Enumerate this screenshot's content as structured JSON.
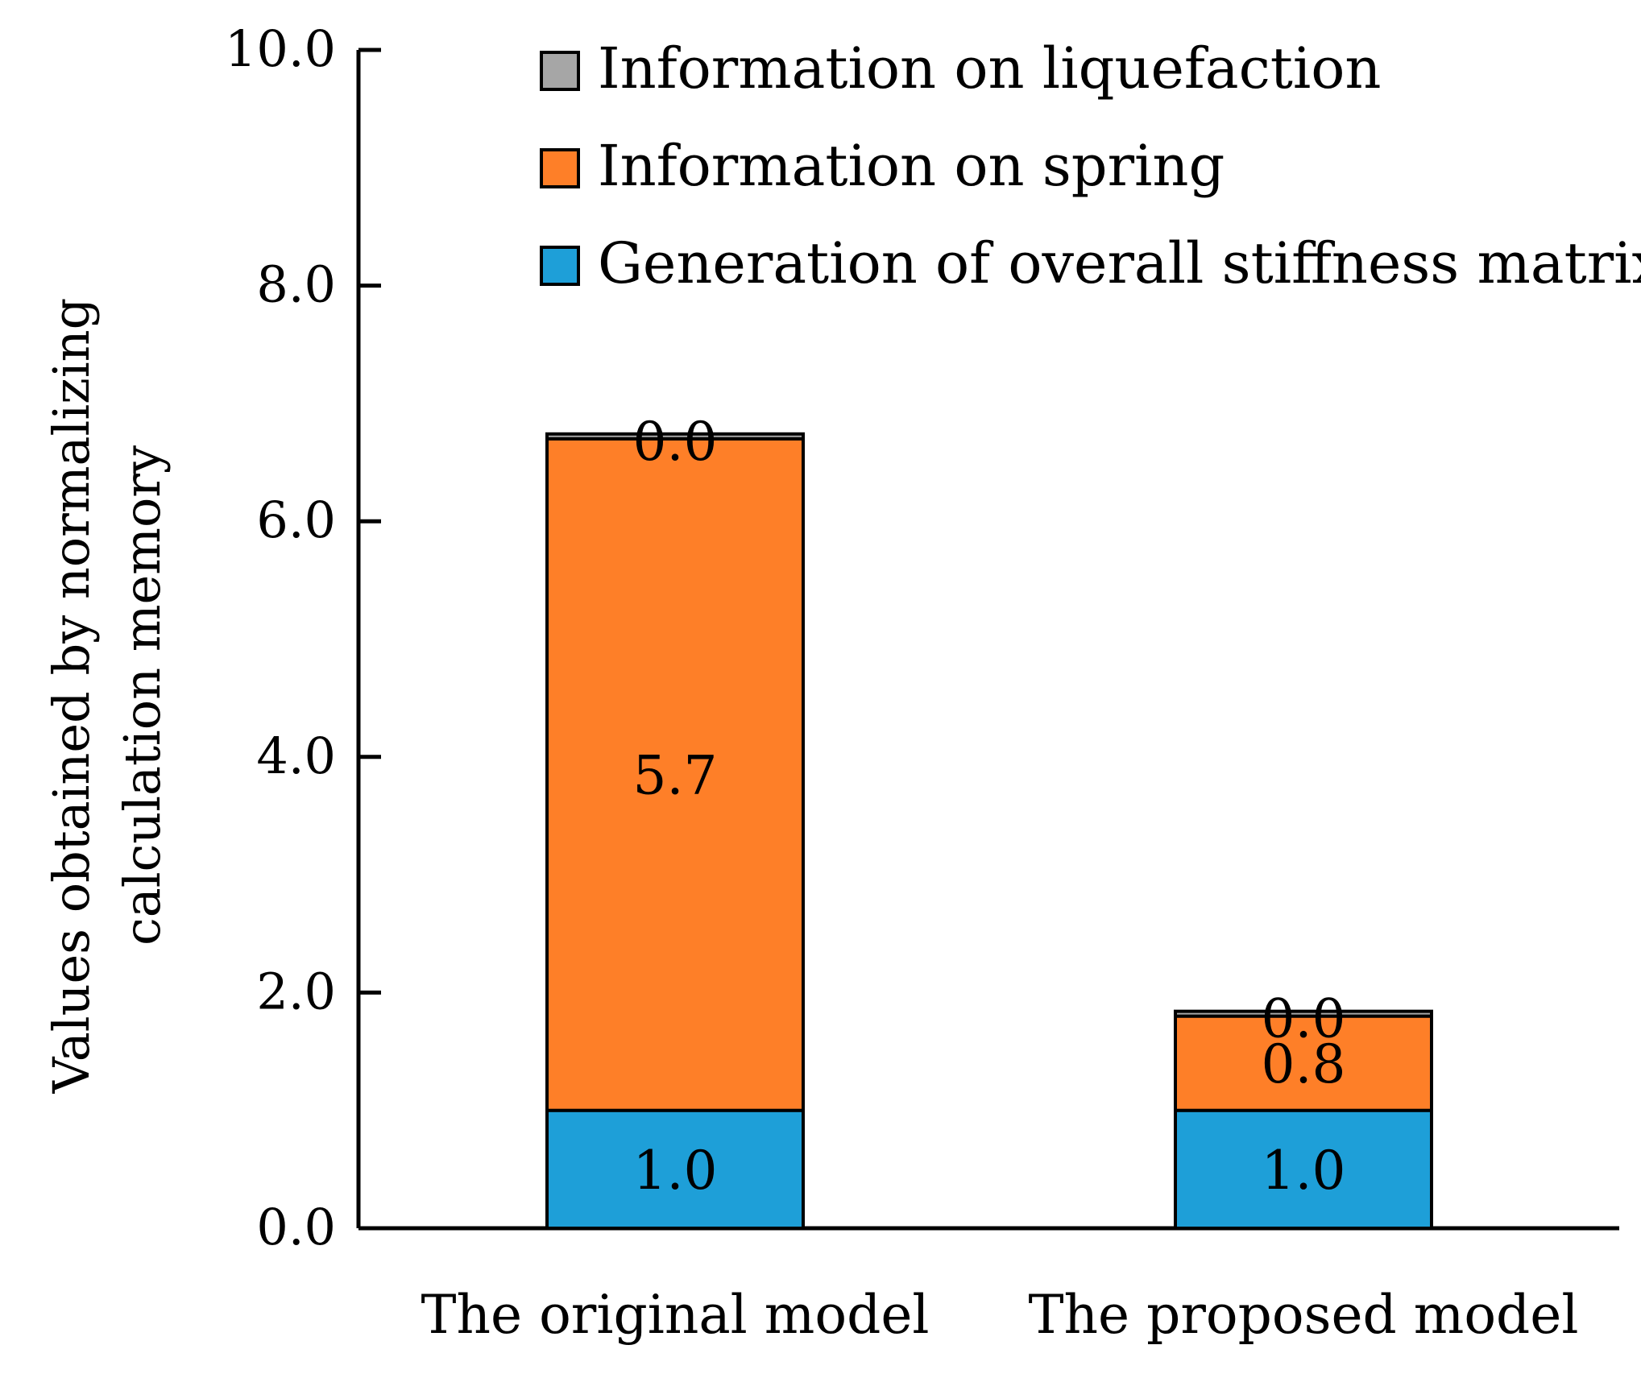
{
  "chart_data": {
    "type": "bar",
    "stacked": true,
    "categories": [
      "The original model",
      "The proposed model"
    ],
    "series": [
      {
        "name": "Generation of overall stiffness matrix",
        "values": [
          1.0,
          1.0
        ],
        "labels": [
          "1.0",
          "1.0"
        ],
        "color": "#1E9FD8"
      },
      {
        "name": "Information on spring",
        "values": [
          5.7,
          0.8
        ],
        "labels": [
          "5.7",
          "0.8"
        ],
        "color": "#FE7F28"
      },
      {
        "name": "Information on liquefaction",
        "values": [
          0.0,
          0.0
        ],
        "labels": [
          "0.0",
          "0.0"
        ],
        "color": "#A6A6A6"
      }
    ],
    "legend_order": [
      "Information on liquefaction",
      "Information on spring",
      "Generation of overall stiffness matrix"
    ],
    "ylabel": [
      "Values obtained by normalizing",
      "calculation memory"
    ],
    "ylim": [
      0,
      10
    ],
    "yticks": [
      0,
      2,
      4,
      6,
      8,
      10
    ],
    "ytick_labels": [
      "0.0",
      "2.0",
      "4.0",
      "6.0",
      "8.0",
      "10.0"
    ],
    "grid": false,
    "legend_position": "top-right"
  }
}
